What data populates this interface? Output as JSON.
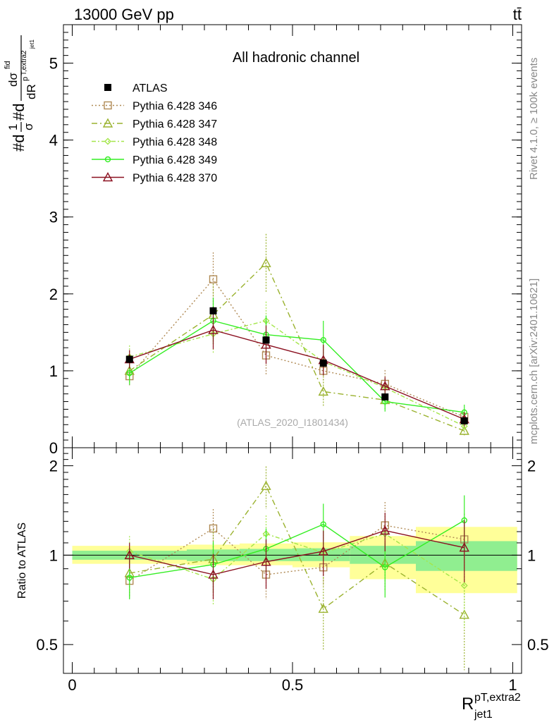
{
  "header": {
    "energy": "13000 GeV pp",
    "process": "tt̄"
  },
  "side_labels": {
    "rivet": "Rivet 4.1.0, ≥ 100k events",
    "mcplots": "mcplots.cern.ch [arXiv:2401.10621]"
  },
  "chart_data": [
    {
      "type": "scatter",
      "panel": "main",
      "title": "All hadronic channel",
      "analysis_tag": "(ATLAS_2020_I1801434)",
      "xlabel": "R",
      "xlabel_sup": "pT,extra2",
      "xlabel_sub": "jet1",
      "ylabel": "#d¹⁄σ#d dσ/dR",
      "ylabel_parts": [
        "#d",
        "1",
        "σ",
        "#d",
        "dσ",
        "fid",
        "p",
        "T,extra2",
        "jet1",
        "dR"
      ],
      "xlim": [
        -0.02,
        1.02
      ],
      "ylim": [
        0,
        5.5
      ],
      "y_ticks": [
        0,
        1,
        2,
        3,
        4,
        5
      ],
      "y_tick_labels": [
        "0",
        "1",
        "2",
        "3",
        "4",
        "5"
      ],
      "x_ticks": [
        0,
        0.5,
        1
      ],
      "x_tick_labels": [
        "0",
        "0.5",
        "1"
      ],
      "x": [
        0.13,
        0.32,
        0.44,
        0.57,
        0.71,
        0.89
      ],
      "series": [
        {
          "name": "ATLAS",
          "color": "#000000",
          "marker": "square-filled",
          "dash": "none",
          "values": [
            1.15,
            1.78,
            1.4,
            1.1,
            0.66,
            0.35
          ],
          "err": [
            0.05,
            0.05,
            0.05,
            0.05,
            0.04,
            0.03
          ]
        },
        {
          "name": "Pythia 6.428 346",
          "color": "#b08a55",
          "marker": "square-open",
          "dash": "2,3",
          "values": [
            0.93,
            2.19,
            1.2,
            1.0,
            0.83,
            0.4
          ],
          "err": [
            0.12,
            0.35,
            0.25,
            0.15,
            0.18,
            0.1
          ]
        },
        {
          "name": "Pythia 6.428 347",
          "color": "#9ab22e",
          "marker": "triangle-open",
          "dash": "8,4,2,4",
          "values": [
            1.0,
            1.73,
            2.4,
            0.73,
            0.62,
            0.22
          ],
          "err": [
            0.15,
            0.4,
            0.38,
            0.2,
            0.12,
            0.07
          ]
        },
        {
          "name": "Pythia 6.428 348",
          "color": "#a4e64a",
          "marker": "diamond-open",
          "dash": "6,3,2,3",
          "values": [
            1.18,
            1.48,
            1.65,
            1.12,
            0.78,
            0.28
          ],
          "err": [
            0.15,
            0.25,
            0.25,
            0.2,
            0.12,
            0.08
          ]
        },
        {
          "name": "Pythia 6.428 349",
          "color": "#33ee22",
          "marker": "circle-open",
          "dash": "none",
          "values": [
            0.97,
            1.65,
            1.47,
            1.4,
            0.6,
            0.46
          ],
          "err": [
            0.15,
            0.3,
            0.25,
            0.25,
            0.13,
            0.1
          ]
        },
        {
          "name": "Pythia 6.428 370",
          "color": "#8b1020",
          "marker": "triangle-open",
          "dash": "none",
          "values": [
            1.15,
            1.53,
            1.34,
            1.14,
            0.8,
            0.37
          ],
          "err": [
            0.12,
            0.25,
            0.25,
            0.2,
            0.12,
            0.09
          ]
        }
      ]
    },
    {
      "type": "scatter",
      "panel": "ratio",
      "ylabel": "Ratio to ATLAS",
      "ylim": [
        0.4,
        2.3
      ],
      "y_ticks": [
        0.5,
        1,
        2
      ],
      "y_tick_labels": [
        "0.5",
        "1",
        "2"
      ],
      "x": [
        0.13,
        0.32,
        0.44,
        0.57,
        0.71,
        0.89
      ],
      "bands": [
        {
          "x0": 0.0,
          "x1": 0.26,
          "stat": [
            0.965,
            1.035
          ],
          "total": [
            0.935,
            1.075
          ]
        },
        {
          "x0": 0.26,
          "x1": 0.38,
          "stat": [
            0.955,
            1.045
          ],
          "total": [
            0.925,
            1.085
          ]
        },
        {
          "x0": 0.38,
          "x1": 0.5,
          "stat": [
            0.955,
            1.05
          ],
          "total": [
            0.925,
            1.095
          ]
        },
        {
          "x0": 0.5,
          "x1": 0.63,
          "stat": [
            0.955,
            1.055
          ],
          "total": [
            0.91,
            1.105
          ]
        },
        {
          "x0": 0.63,
          "x1": 0.78,
          "stat": [
            0.935,
            1.075
          ],
          "total": [
            0.83,
            1.16
          ]
        },
        {
          "x0": 0.78,
          "x1": 1.01,
          "stat": [
            0.885,
            1.115
          ],
          "total": [
            0.745,
            1.245
          ]
        }
      ],
      "series": [
        {
          "name": "Pythia 6.428 346",
          "values": [
            0.82,
            1.23,
            0.86,
            0.91,
            1.26,
            1.13
          ],
          "err": [
            0.1,
            0.2,
            0.15,
            0.12,
            0.25,
            0.25
          ]
        },
        {
          "name": "Pythia 6.428 347",
          "values": [
            0.87,
            0.97,
            1.71,
            0.66,
            0.94,
            0.63
          ],
          "err": [
            0.15,
            0.25,
            0.28,
            0.18,
            0.18,
            0.22
          ]
        },
        {
          "name": "Pythia 6.428 348",
          "values": [
            1.03,
            0.83,
            1.18,
            1.02,
            1.18,
            0.79
          ],
          "err": [
            0.13,
            0.15,
            0.18,
            0.18,
            0.18,
            0.22
          ]
        },
        {
          "name": "Pythia 6.428 349",
          "values": [
            0.84,
            0.93,
            1.05,
            1.27,
            0.91,
            1.31
          ],
          "err": [
            0.13,
            0.18,
            0.18,
            0.22,
            0.19,
            0.28
          ]
        },
        {
          "name": "Pythia 6.428 370",
          "values": [
            1.0,
            0.86,
            0.95,
            1.03,
            1.21,
            1.06
          ],
          "err": [
            0.1,
            0.15,
            0.18,
            0.18,
            0.18,
            0.25
          ]
        }
      ]
    }
  ]
}
